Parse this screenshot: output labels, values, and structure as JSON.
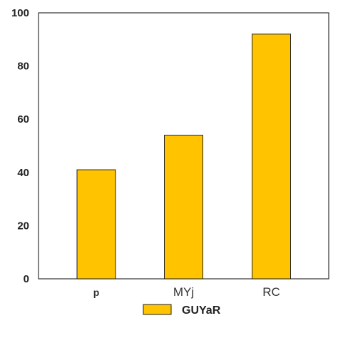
{
  "chart_data": {
    "type": "bar",
    "categories": [
      "p",
      "MYj",
      "RC"
    ],
    "series": [
      {
        "name": "GUYaR",
        "values": [
          41,
          54,
          92
        ],
        "color": "#FFC300"
      }
    ],
    "ylim": [
      0,
      100
    ],
    "yticks": [
      0,
      20,
      40,
      60,
      80,
      100
    ],
    "grid": false,
    "legend_position": "bottom-center"
  }
}
